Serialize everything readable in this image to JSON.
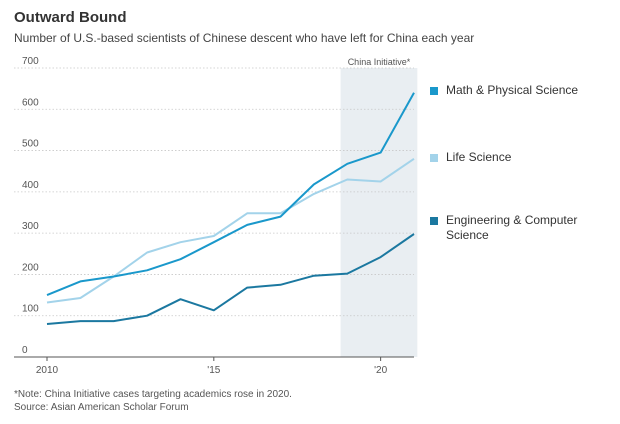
{
  "chart_data": {
    "type": "line",
    "title": "Outward Bound",
    "subtitle": "Number of U.S.-based scientists of Chinese descent who have left for China each year",
    "x": [
      2010,
      2011,
      2012,
      2013,
      2014,
      2015,
      2016,
      2017,
      2018,
      2019,
      2020,
      2021
    ],
    "x_tick_labels": [
      {
        "value": 2010,
        "label": "2010"
      },
      {
        "value": 2015,
        "label": "'15"
      },
      {
        "value": 2020,
        "label": "'20"
      }
    ],
    "y_ticks": [
      0,
      100,
      200,
      300,
      400,
      500,
      600,
      700
    ],
    "ylim": [
      0,
      700
    ],
    "xlim": [
      2010,
      2021
    ],
    "grid": "horizontal dotted",
    "legend_placement": "right",
    "shaded_region": {
      "start": 2018.8,
      "end": 2021.1,
      "label": "China Initiative*"
    },
    "series": [
      {
        "name": "Math & Physical Science",
        "color": "#1a98cb",
        "values": [
          150,
          183,
          195,
          210,
          237,
          278,
          320,
          340,
          418,
          468,
          495,
          640
        ]
      },
      {
        "name": "Life Science",
        "color": "#a3d3ea",
        "values": [
          132,
          143,
          195,
          253,
          278,
          293,
          348,
          348,
          395,
          430,
          425,
          480
        ]
      },
      {
        "name": "Engineering & Computer Science",
        "color": "#1b78a0",
        "values": [
          80,
          87,
          87,
          100,
          140,
          113,
          168,
          175,
          197,
          202,
          242,
          298
        ]
      }
    ]
  },
  "footnote": "*Note: China Initiative cases targeting academics rose in 2020.",
  "source": "Source: Asian American Scholar Forum"
}
